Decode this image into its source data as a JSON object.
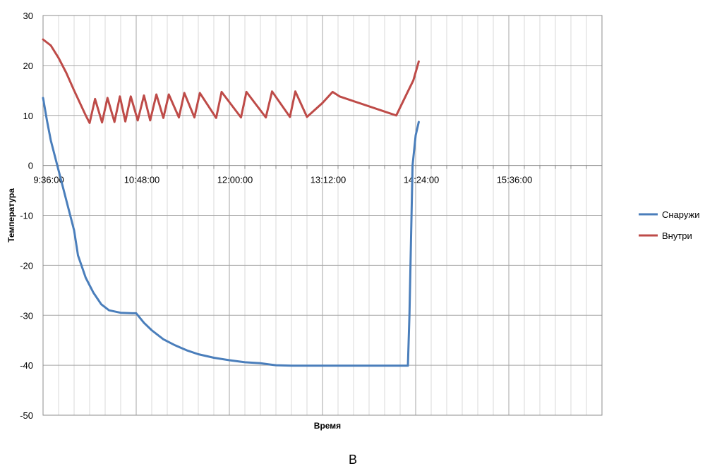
{
  "chart_data": {
    "type": "line",
    "title": "",
    "xlabel": "Время",
    "ylabel": "Температура",
    "x_unit": "time of day (hours)",
    "xlim": [
      9.6,
      16.8
    ],
    "ylim": [
      -50,
      30
    ],
    "y_ticks": [
      30,
      20,
      10,
      0,
      -10,
      -20,
      -30,
      -40,
      -50
    ],
    "y_tick_labels": [
      "30",
      "20",
      "10",
      "0",
      "-10",
      "-20",
      "-30",
      "-40",
      "-50"
    ],
    "x_ticks": [
      9.6,
      10.8,
      12.0,
      13.2,
      14.4,
      15.6
    ],
    "x_tick_labels": [
      "9:36:00",
      "10:48:00",
      "12:00:00",
      "13:12:00",
      "14:24:00",
      "15:36:00"
    ],
    "grid": true,
    "legend_position": "right",
    "series": [
      {
        "name": "Снаружи",
        "color": "#4a7ebb",
        "points": [
          [
            9.6,
            13.5
          ],
          [
            9.65,
            9
          ],
          [
            9.7,
            5
          ],
          [
            9.8,
            -1
          ],
          [
            9.9,
            -7
          ],
          [
            10.0,
            -13
          ],
          [
            10.05,
            -18
          ],
          [
            10.15,
            -22.5
          ],
          [
            10.25,
            -25.5
          ],
          [
            10.35,
            -27.8
          ],
          [
            10.45,
            -29
          ],
          [
            10.6,
            -29.5
          ],
          [
            10.75,
            -29.6
          ],
          [
            10.8,
            -29.6
          ],
          [
            10.9,
            -31.5
          ],
          [
            11.0,
            -33
          ],
          [
            11.15,
            -34.8
          ],
          [
            11.3,
            -36
          ],
          [
            11.45,
            -37
          ],
          [
            11.6,
            -37.8
          ],
          [
            11.8,
            -38.5
          ],
          [
            12.0,
            -39
          ],
          [
            12.2,
            -39.4
          ],
          [
            12.4,
            -39.6
          ],
          [
            12.6,
            -40
          ],
          [
            12.8,
            -40.1
          ],
          [
            13.0,
            -40.1
          ],
          [
            13.5,
            -40.1
          ],
          [
            14.0,
            -40.1
          ],
          [
            14.3,
            -40.1
          ],
          [
            14.32,
            -30
          ],
          [
            14.36,
            0
          ],
          [
            14.4,
            6
          ],
          [
            14.44,
            8.7
          ]
        ]
      },
      {
        "name": "Внутри",
        "color": "#be4b48",
        "points": [
          [
            9.6,
            25.2
          ],
          [
            9.7,
            24
          ],
          [
            9.8,
            21.5
          ],
          [
            9.9,
            18.5
          ],
          [
            10.0,
            15
          ],
          [
            10.15,
            10
          ],
          [
            10.2,
            8.5
          ],
          [
            10.27,
            13.3
          ],
          [
            10.36,
            8.6
          ],
          [
            10.43,
            13.5
          ],
          [
            10.52,
            8.7
          ],
          [
            10.59,
            13.8
          ],
          [
            10.66,
            8.8
          ],
          [
            10.73,
            13.8
          ],
          [
            10.82,
            9
          ],
          [
            10.9,
            14
          ],
          [
            10.98,
            9
          ],
          [
            11.06,
            14.2
          ],
          [
            11.15,
            9.5
          ],
          [
            11.22,
            14.2
          ],
          [
            11.35,
            9.6
          ],
          [
            11.42,
            14.5
          ],
          [
            11.55,
            9.6
          ],
          [
            11.62,
            14.5
          ],
          [
            11.83,
            9.5
          ],
          [
            11.9,
            14.7
          ],
          [
            12.15,
            9.6
          ],
          [
            12.22,
            14.7
          ],
          [
            12.47,
            9.6
          ],
          [
            12.55,
            14.8
          ],
          [
            12.78,
            9.7
          ],
          [
            12.85,
            14.8
          ],
          [
            13.0,
            9.7
          ],
          [
            13.2,
            12.5
          ],
          [
            13.33,
            14.7
          ],
          [
            13.42,
            13.8
          ],
          [
            14.15,
            10
          ],
          [
            14.3,
            14.8
          ],
          [
            14.37,
            17
          ],
          [
            14.44,
            20.8
          ]
        ]
      }
    ]
  },
  "panel_label": "В"
}
